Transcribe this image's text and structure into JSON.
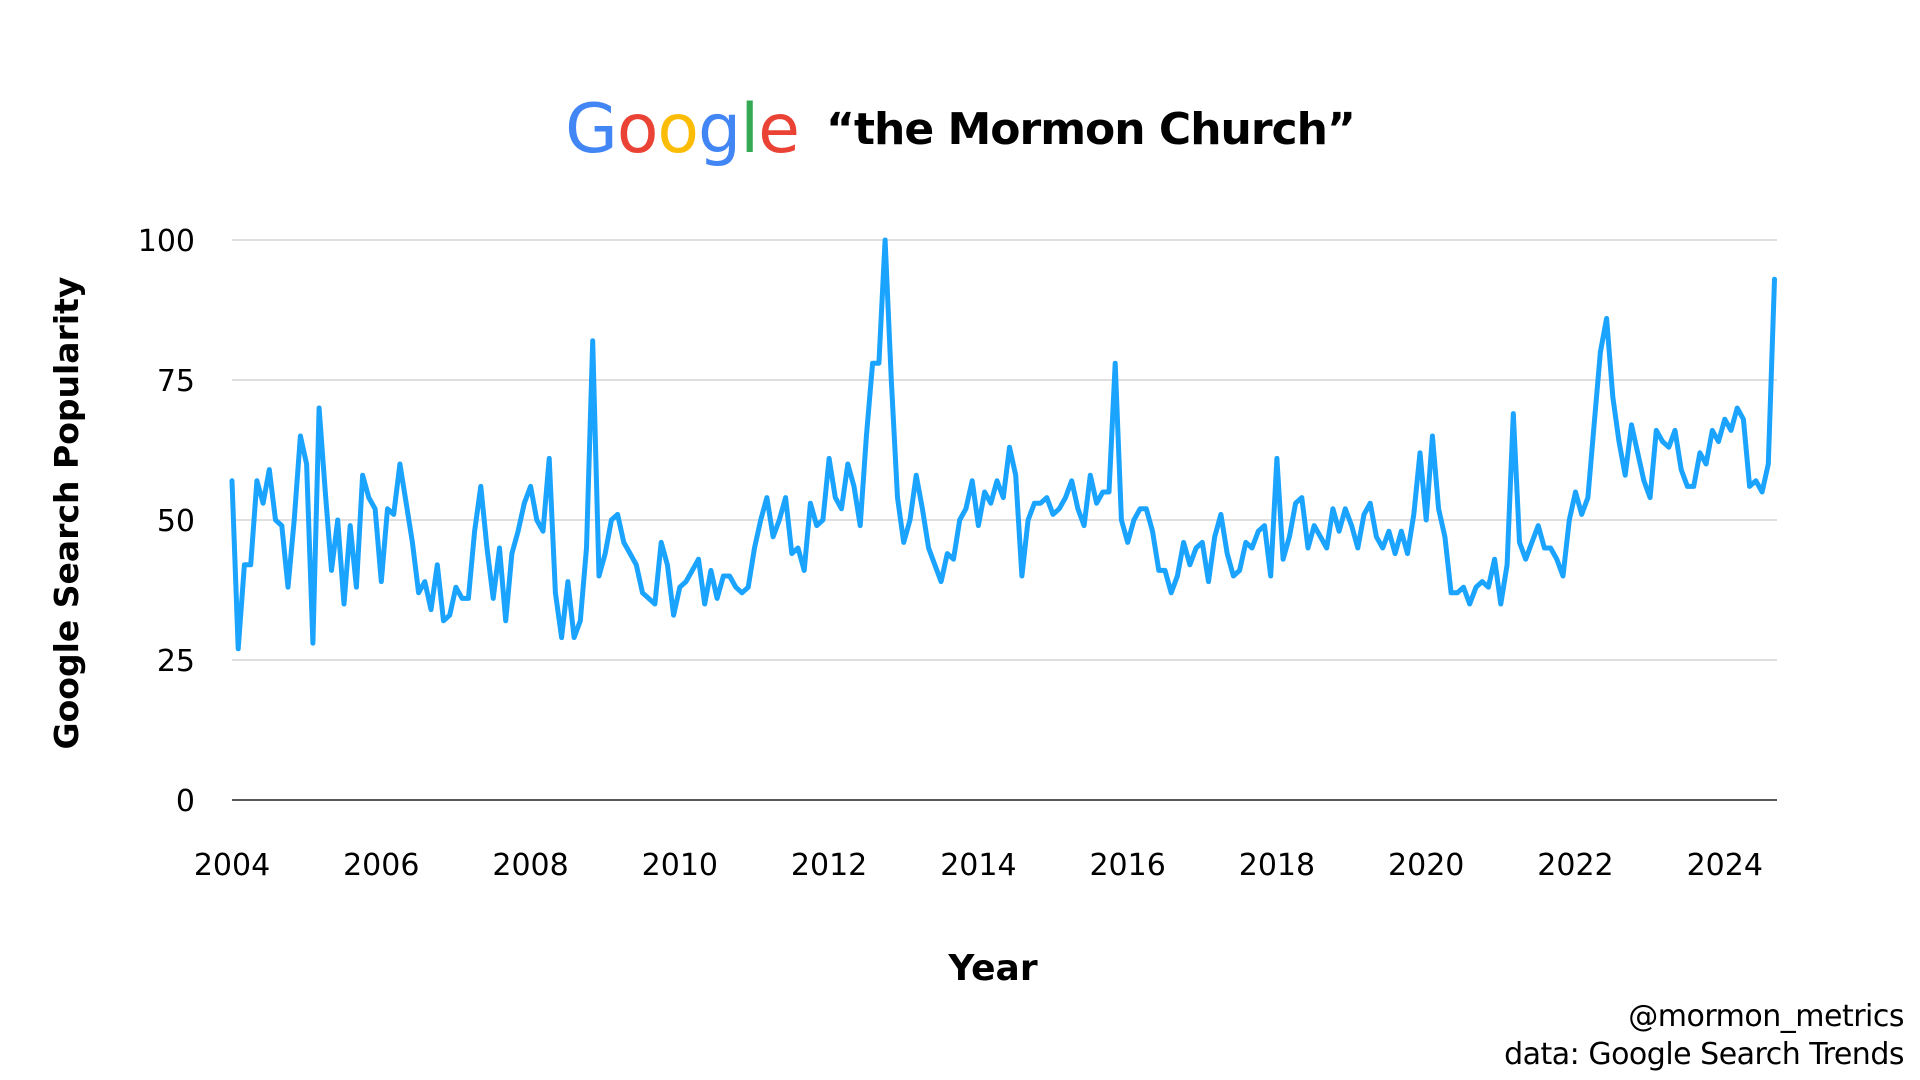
{
  "header": {
    "logo": {
      "letters": [
        {
          "char": "G",
          "color": "#4285F4"
        },
        {
          "char": "o",
          "color": "#EA4335"
        },
        {
          "char": "o",
          "color": "#FBBC05"
        },
        {
          "char": "g",
          "color": "#4285F4"
        },
        {
          "char": "l",
          "color": "#34A853"
        },
        {
          "char": "e",
          "color": "#EA4335"
        }
      ]
    },
    "title": "“the Mormon Church”"
  },
  "credits": {
    "handle": "@mormon_metrics",
    "source": "data: Google Search Trends"
  },
  "chart_data": {
    "type": "line",
    "title": "“the Mormon Church”",
    "xlabel": "Year",
    "ylabel": "Google Search Popularity",
    "xlim": [
      2004,
      2024.7
    ],
    "ylim": [
      0,
      100
    ],
    "x_ticks": [
      2004,
      2006,
      2008,
      2010,
      2012,
      2014,
      2016,
      2018,
      2020,
      2022,
      2024
    ],
    "y_ticks": [
      0,
      25,
      50,
      75,
      100
    ],
    "grid": "horizontal",
    "line_color": "#1aa3ff",
    "x_start": "2004-01",
    "x_step": "monthly",
    "series": [
      {
        "values": [
          57,
          27,
          42,
          42,
          57,
          53,
          59,
          50,
          49,
          38,
          50,
          65,
          60,
          28,
          70,
          55,
          41,
          50,
          35,
          49,
          38,
          58,
          54,
          52,
          39,
          52,
          51,
          60,
          53,
          46,
          37,
          39,
          34,
          42,
          32,
          33,
          38,
          36,
          36,
          48,
          56,
          45,
          36,
          45,
          32,
          44,
          48,
          53,
          56,
          50,
          48,
          61,
          37,
          29,
          39,
          29,
          32,
          45,
          82,
          40,
          44,
          50,
          51,
          46,
          44,
          42,
          37,
          36,
          35,
          46,
          42,
          33,
          38,
          39,
          41,
          43,
          35,
          41,
          36,
          40,
          40,
          38,
          37,
          38,
          45,
          50,
          54,
          47,
          50,
          54,
          44,
          45,
          41,
          53,
          49,
          50,
          61,
          54,
          52,
          60,
          56,
          49,
          65,
          78,
          78,
          100,
          75,
          54,
          46,
          50,
          58,
          52,
          45,
          42,
          39,
          44,
          43,
          50,
          52,
          57,
          49,
          55,
          53,
          57,
          54,
          63,
          58,
          40,
          50,
          53,
          53,
          54,
          51,
          52,
          54,
          57,
          52,
          49,
          58,
          53,
          55,
          55,
          78,
          50,
          46,
          50,
          52,
          52,
          48,
          41,
          41,
          37,
          40,
          46,
          42,
          45,
          46,
          39,
          47,
          51,
          44,
          40,
          41,
          46,
          45,
          48,
          49,
          40,
          61,
          43,
          47,
          53,
          54,
          45,
          49,
          47,
          45,
          52,
          48,
          52,
          49,
          45,
          51,
          53,
          47,
          45,
          48,
          44,
          48,
          44,
          51,
          62,
          50,
          65,
          52,
          47,
          37,
          37,
          38,
          35,
          38,
          39,
          38,
          43,
          35,
          42,
          69,
          46,
          43,
          46,
          49,
          45,
          45,
          43,
          40,
          50,
          55,
          51,
          54,
          67,
          80,
          86,
          72,
          64,
          58,
          67,
          62,
          57,
          54,
          66,
          64,
          63,
          66,
          59,
          56,
          56,
          62,
          60,
          66,
          64,
          68,
          66,
          70,
          68,
          56,
          57,
          55,
          60,
          93
        ]
      }
    ]
  }
}
